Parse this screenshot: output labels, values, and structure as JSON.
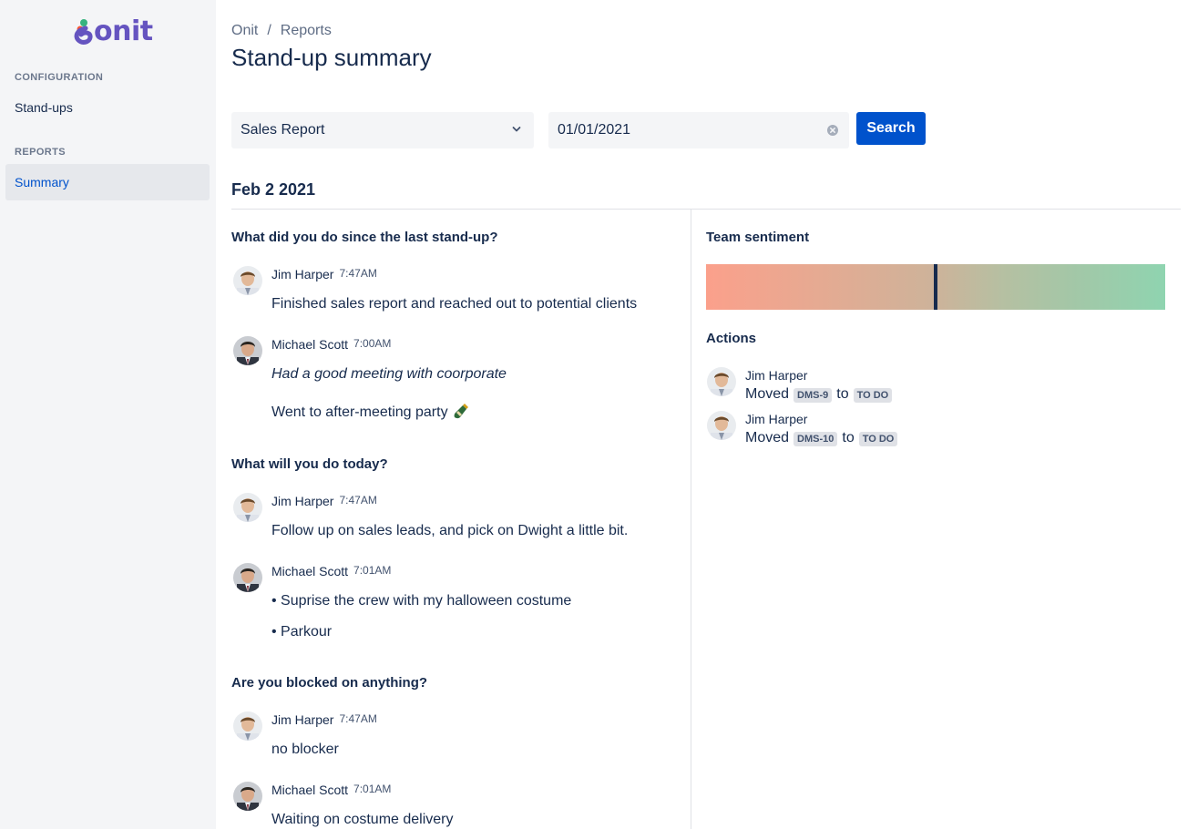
{
  "brand": {
    "name": "onit",
    "color": "#6554c0"
  },
  "sidebar": {
    "sections": [
      {
        "heading": "CONFIGURATION",
        "items": [
          {
            "label": "Stand-ups"
          }
        ]
      },
      {
        "heading": "REPORTS",
        "items": [
          {
            "label": "Summary",
            "active": true
          }
        ]
      }
    ]
  },
  "breadcrumb": [
    "Onit",
    "Reports"
  ],
  "breadcrumb_separator": "/",
  "page_title": "Stand-up summary",
  "filters": {
    "report_select": {
      "value": "Sales Report",
      "icon": "chevron-down-icon"
    },
    "date_input": {
      "value": "01/01/2021",
      "icon": "clear-icon"
    },
    "search_label": "Search"
  },
  "date_heading": "Feb 2 2021",
  "questions": [
    {
      "title": "What did you do since the last stand-up?",
      "answers": [
        {
          "name": "Jim Harper",
          "time": "7:47AM",
          "lines": [
            "Finished sales report and reached out to potential clients"
          ]
        },
        {
          "name": "Michael Scott",
          "time": "7:00AM",
          "lines": [
            "Had a good meeting with coorporate",
            "Went to after-meeting party"
          ]
        }
      ]
    },
    {
      "title": "What will you do today?",
      "answers": [
        {
          "name": "Jim Harper",
          "time": "7:47AM",
          "lines": [
            "Follow up on sales leads, and pick on Dwight a little bit."
          ]
        },
        {
          "name": "Michael Scott",
          "time": "7:01AM",
          "lines": [
            "• Suprise the crew with my halloween costume",
            "• Parkour"
          ]
        }
      ]
    },
    {
      "title": "Are you blocked on anything?",
      "answers": [
        {
          "name": "Jim Harper",
          "time": "7:47AM",
          "lines": [
            "no blocker"
          ]
        },
        {
          "name": "Michael Scott",
          "time": "7:01AM",
          "lines": [
            "Waiting on costume delivery"
          ]
        }
      ]
    }
  ],
  "sentiment": {
    "title": "Team sentiment",
    "value": 0.5,
    "colors": {
      "negative": "#fba08b",
      "positive": "#8fd4b0",
      "marker": "#172b4d"
    }
  },
  "actions": {
    "title": "Actions",
    "items": [
      {
        "name": "Jim Harper",
        "verb": "Moved",
        "issue": "DMS-9",
        "connector": "to",
        "status": "TO DO"
      },
      {
        "name": "Jim Harper",
        "verb": "Moved",
        "issue": "DMS-10",
        "connector": "to",
        "status": "TO DO"
      }
    ]
  },
  "colors": {
    "accent": "#0052cc",
    "sidebar_bg": "#f4f5f7",
    "text": "#172b4d"
  }
}
